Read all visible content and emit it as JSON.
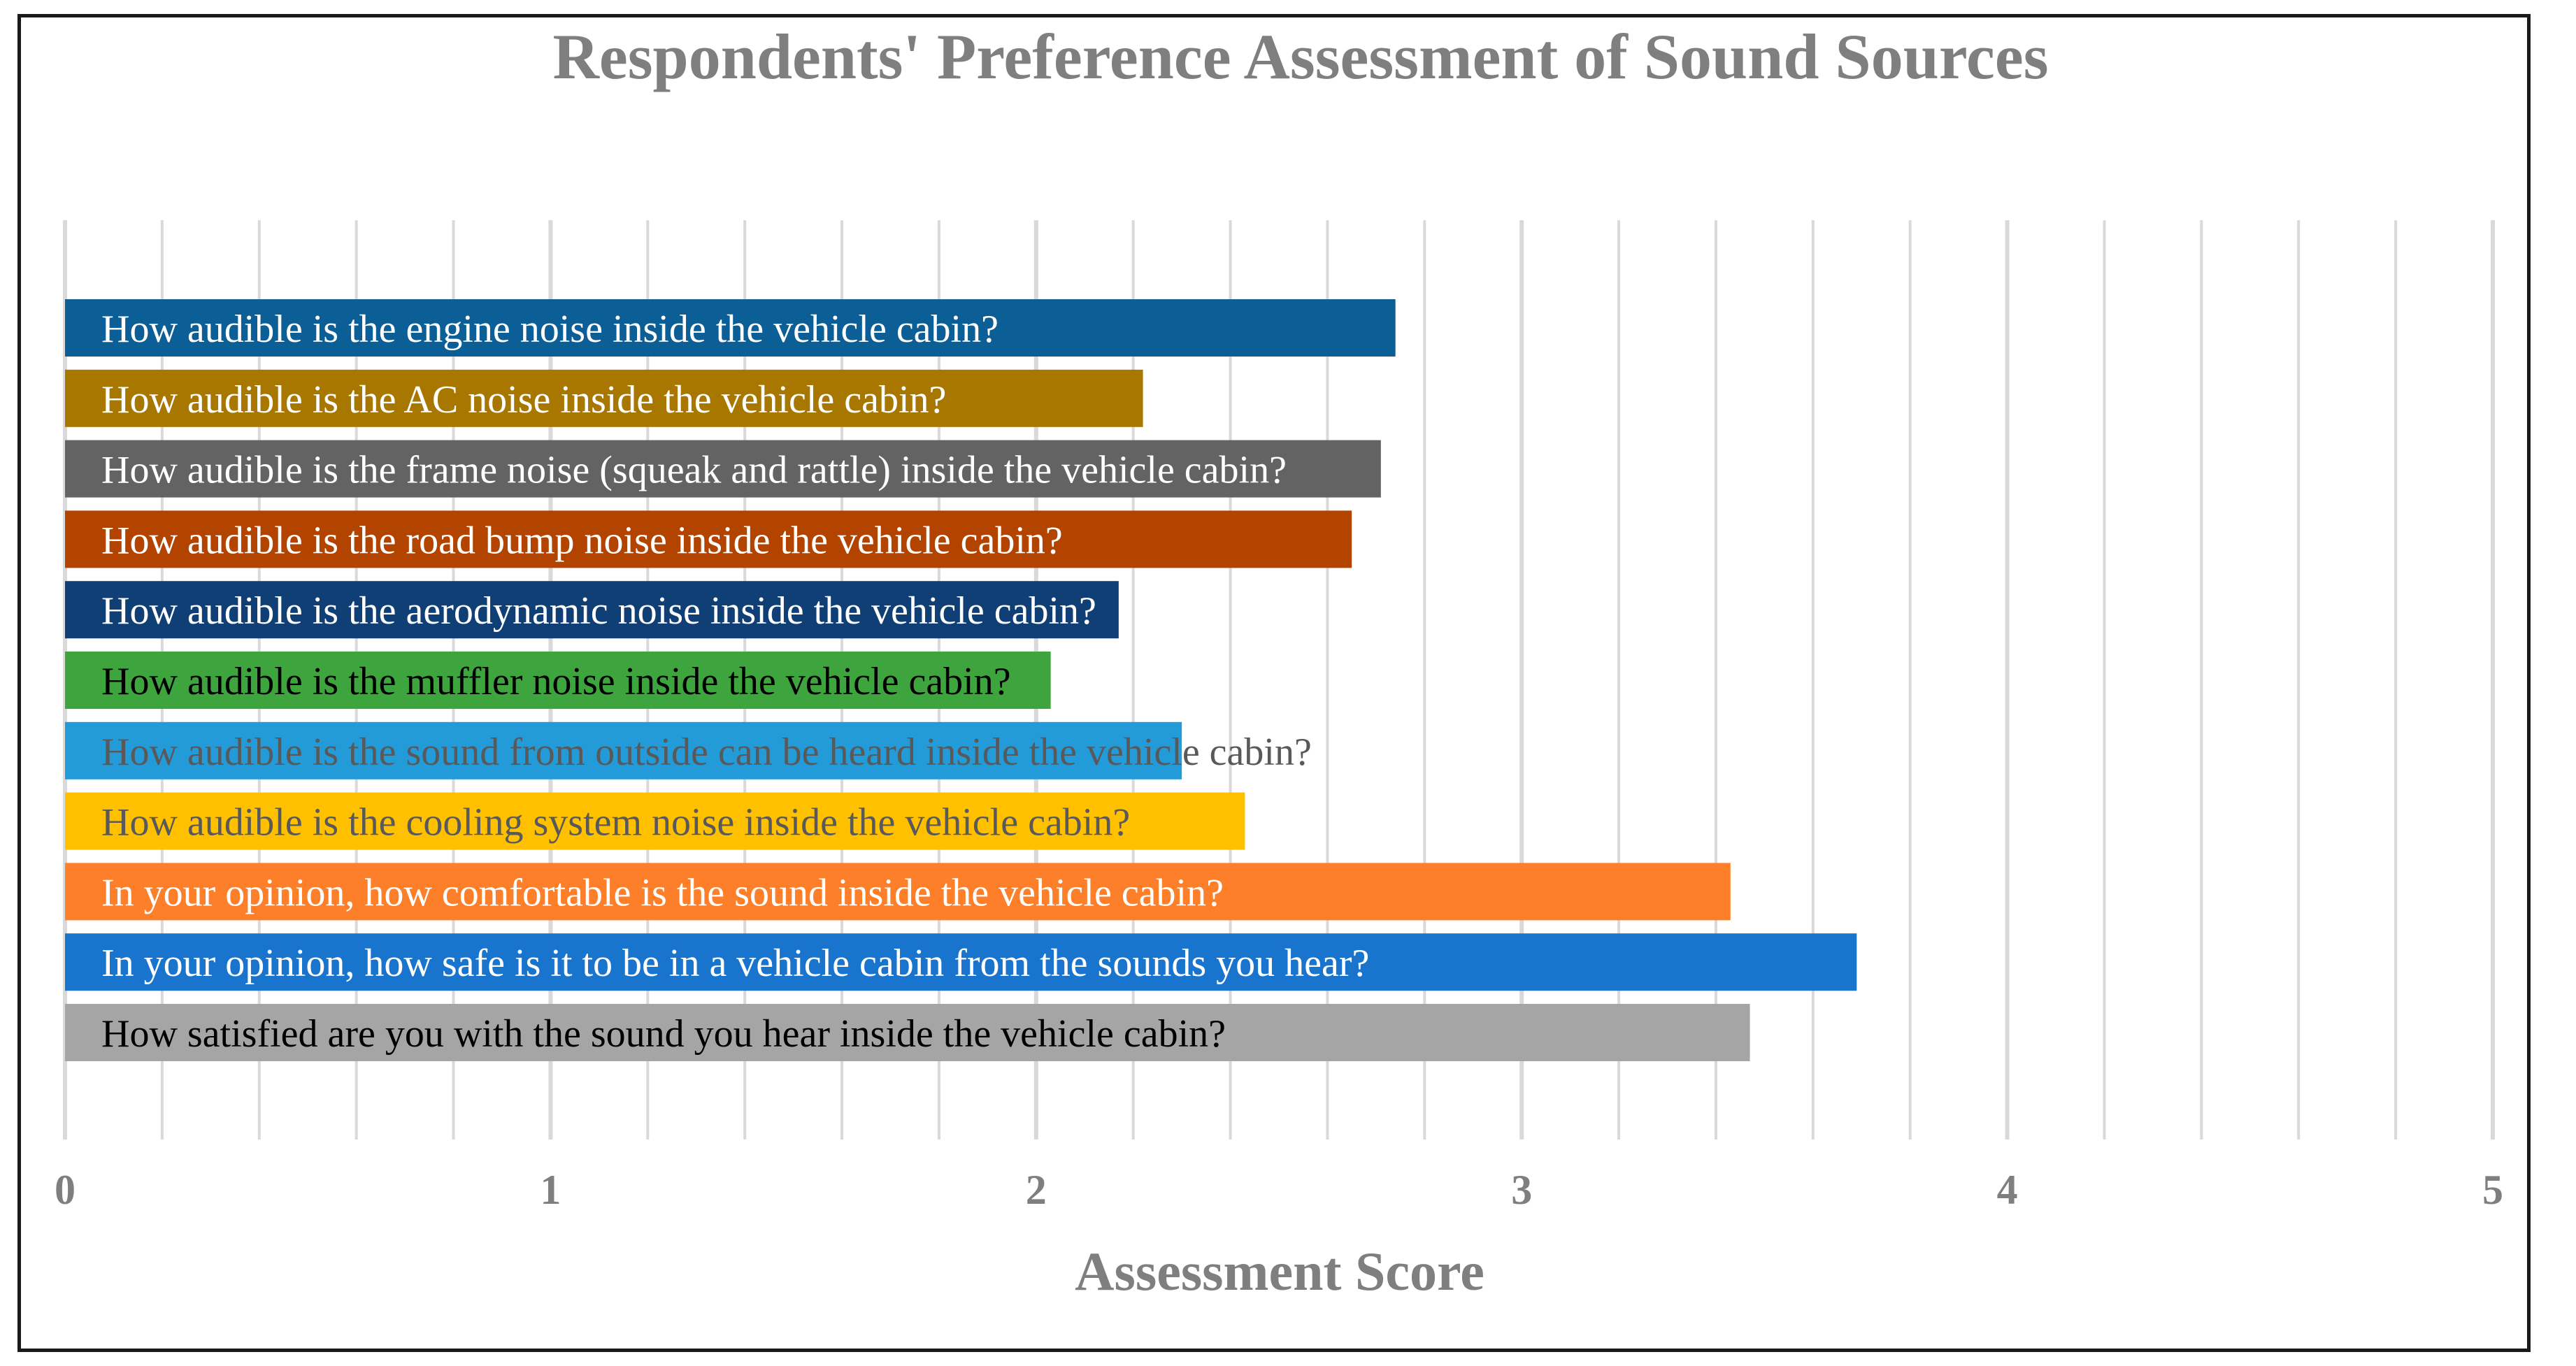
{
  "chart_data": {
    "type": "bar",
    "orientation": "horizontal",
    "title": "Respondents' Preference Assessment of Sound Sources",
    "xlabel": "Assessment Score",
    "ylabel": "",
    "xlim": [
      0,
      5
    ],
    "xticks": [
      "0",
      "1",
      "2",
      "3",
      "4",
      "5"
    ],
    "grid": true,
    "legend": "none",
    "categories": [
      "How audible is the engine noise inside the vehicle cabin?",
      "How audible is the AC noise inside the vehicle cabin?",
      "How audible is the frame noise (squeak and rattle) inside the vehicle cabin?",
      "How audible is the road bump noise inside the vehicle cabin?",
      "How audible is the aerodynamic noise inside the vehicle cabin?",
      "How audible is the muffler noise inside the vehicle cabin?",
      "How audible is the sound from outside can be heard inside the vehicle cabin?",
      "How audible is the cooling system noise inside the vehicle cabin?",
      "In your opinion, how comfortable is the sound inside the vehicle cabin?",
      "In your opinion, how safe is it to be in a vehicle cabin from the sounds you hear?",
      "How satisfied are you with the sound you hear inside the vehicle cabin?"
    ],
    "values": [
      2.74,
      2.22,
      2.71,
      2.65,
      2.17,
      2.03,
      2.3,
      2.43,
      3.43,
      3.69,
      3.47
    ],
    "bar_colors": [
      "#0b5e96",
      "#a87700",
      "#636363",
      "#b34400",
      "#0f3f75",
      "#3ea53e",
      "#249bd9",
      "#ffc000",
      "#fd7f2a",
      "#1874cd",
      "#a5a5a5"
    ],
    "label_colors": [
      "#ffffff",
      "#ffffff",
      "#ffffff",
      "#ffffff",
      "#ffffff",
      "#000000",
      "#595959",
      "#595959",
      "#ffffff",
      "#ffffff",
      "#000000"
    ],
    "colors": {
      "title": "#7f7f7f",
      "gridline": "#d9d9d9",
      "frame": "#1a1a1a"
    }
  }
}
